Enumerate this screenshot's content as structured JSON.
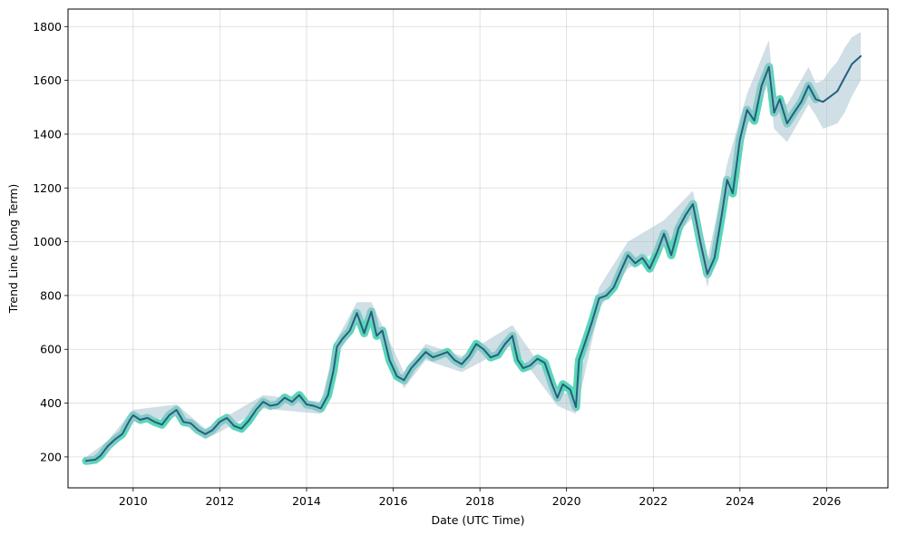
{
  "chart_data": {
    "type": "line",
    "title": "",
    "xlabel": "Date (UTC Time)",
    "ylabel": "Trend Line (Long Term)",
    "xlim": [
      "2008-07-01",
      "2027-06-01"
    ],
    "ylim": [
      85,
      1865
    ],
    "grid": true,
    "x_ticks": [
      "2010",
      "2012",
      "2014",
      "2016",
      "2018",
      "2020",
      "2022",
      "2024",
      "2026"
    ],
    "y_ticks": [
      200,
      400,
      600,
      800,
      1000,
      1200,
      1400,
      1600,
      1800
    ],
    "colors": {
      "history_band": "#48d1b0",
      "trend_line": "#24607f",
      "uncertainty_band": "#a9c3d2"
    },
    "series": [
      {
        "role": "history",
        "band_width": 18,
        "points": [
          [
            "2008-12-01",
            185
          ],
          [
            "2009-02-15",
            190
          ],
          [
            "2009-04-01",
            205
          ],
          [
            "2009-06-01",
            240
          ],
          [
            "2009-08-01",
            265
          ],
          [
            "2009-10-01",
            285
          ],
          [
            "2009-12-01",
            335
          ],
          [
            "2010-01-01",
            355
          ],
          [
            "2010-03-01",
            338
          ],
          [
            "2010-05-01",
            345
          ],
          [
            "2010-07-01",
            330
          ],
          [
            "2010-09-01",
            320
          ],
          [
            "2010-11-01",
            355
          ],
          [
            "2011-01-01",
            375
          ],
          [
            "2011-03-01",
            330
          ],
          [
            "2011-05-01",
            325
          ],
          [
            "2011-07-01",
            300
          ],
          [
            "2011-09-01",
            285
          ],
          [
            "2011-11-01",
            300
          ],
          [
            "2012-01-01",
            330
          ],
          [
            "2012-03-01",
            345
          ],
          [
            "2012-05-01",
            315
          ],
          [
            "2012-07-01",
            305
          ],
          [
            "2012-09-01",
            335
          ],
          [
            "2012-11-01",
            375
          ],
          [
            "2013-01-01",
            405
          ],
          [
            "2013-03-01",
            390
          ],
          [
            "2013-05-01",
            395
          ],
          [
            "2013-07-01",
            420
          ],
          [
            "2013-09-01",
            405
          ],
          [
            "2013-11-01",
            430
          ],
          [
            "2014-01-01",
            395
          ],
          [
            "2014-03-01",
            390
          ],
          [
            "2014-05-01",
            380
          ],
          [
            "2014-07-01",
            430
          ],
          [
            "2014-08-15",
            520
          ],
          [
            "2014-09-15",
            610
          ],
          [
            "2014-11-01",
            640
          ],
          [
            "2015-01-01",
            670
          ],
          [
            "2015-03-01",
            735
          ],
          [
            "2015-05-01",
            660
          ],
          [
            "2015-07-01",
            740
          ],
          [
            "2015-08-15",
            650
          ],
          [
            "2015-10-01",
            670
          ],
          [
            "2015-12-01",
            560
          ],
          [
            "2016-02-01",
            500
          ],
          [
            "2016-04-01",
            485
          ],
          [
            "2016-06-01",
            530
          ],
          [
            "2016-08-01",
            560
          ],
          [
            "2016-10-01",
            590
          ],
          [
            "2016-12-01",
            570
          ],
          [
            "2017-02-01",
            580
          ],
          [
            "2017-04-01",
            590
          ],
          [
            "2017-06-01",
            560
          ],
          [
            "2017-08-01",
            545
          ],
          [
            "2017-10-01",
            575
          ],
          [
            "2017-12-01",
            620
          ],
          [
            "2018-02-01",
            600
          ],
          [
            "2018-04-01",
            570
          ],
          [
            "2018-06-01",
            580
          ],
          [
            "2018-08-01",
            620
          ],
          [
            "2018-10-01",
            650
          ],
          [
            "2018-11-15",
            560
          ],
          [
            "2019-01-01",
            530
          ],
          [
            "2019-03-01",
            540
          ],
          [
            "2019-05-01",
            565
          ],
          [
            "2019-07-01",
            550
          ],
          [
            "2019-09-01",
            470
          ],
          [
            "2019-10-15",
            420
          ],
          [
            "2019-12-01",
            470
          ],
          [
            "2020-02-01",
            450
          ],
          [
            "2020-03-20",
            385
          ],
          [
            "2020-04-15",
            560
          ],
          [
            "2020-06-01",
            620
          ],
          [
            "2020-08-01",
            700
          ],
          [
            "2020-10-01",
            790
          ],
          [
            "2020-12-01",
            800
          ],
          [
            "2021-02-01",
            830
          ],
          [
            "2021-04-01",
            890
          ],
          [
            "2021-06-01",
            950
          ],
          [
            "2021-08-01",
            920
          ],
          [
            "2021-10-01",
            940
          ],
          [
            "2021-12-01",
            900
          ],
          [
            "2022-02-01",
            960
          ],
          [
            "2022-04-01",
            1030
          ],
          [
            "2022-06-01",
            950
          ],
          [
            "2022-08-01",
            1050
          ],
          [
            "2022-10-01",
            1100
          ],
          [
            "2022-12-01",
            1140
          ],
          [
            "2023-02-01",
            1000
          ],
          [
            "2023-04-01",
            880
          ],
          [
            "2023-06-01",
            940
          ],
          [
            "2023-08-01",
            1100
          ],
          [
            "2023-09-15",
            1230
          ],
          [
            "2023-11-01",
            1180
          ],
          [
            "2024-01-01",
            1380
          ],
          [
            "2024-03-01",
            1490
          ],
          [
            "2024-05-01",
            1450
          ],
          [
            "2024-07-01",
            1580
          ],
          [
            "2024-09-01",
            1650
          ],
          [
            "2024-10-15",
            1480
          ],
          [
            "2024-12-01",
            1530
          ],
          [
            "2025-02-01",
            1440
          ],
          [
            "2025-04-01",
            1480
          ],
          [
            "2025-06-01",
            1520
          ],
          [
            "2025-08-01",
            1580
          ],
          [
            "2025-10-01",
            1530
          ]
        ]
      },
      {
        "role": "trend",
        "points": [
          [
            "2008-12-01",
            185
          ],
          [
            "2009-02-15",
            190
          ],
          [
            "2009-04-01",
            205
          ],
          [
            "2009-06-01",
            240
          ],
          [
            "2009-08-01",
            265
          ],
          [
            "2009-10-01",
            285
          ],
          [
            "2009-12-01",
            335
          ],
          [
            "2010-01-01",
            355
          ],
          [
            "2010-03-01",
            338
          ],
          [
            "2010-05-01",
            345
          ],
          [
            "2010-07-01",
            330
          ],
          [
            "2010-09-01",
            320
          ],
          [
            "2010-11-01",
            355
          ],
          [
            "2011-01-01",
            375
          ],
          [
            "2011-03-01",
            330
          ],
          [
            "2011-05-01",
            325
          ],
          [
            "2011-07-01",
            300
          ],
          [
            "2011-09-01",
            285
          ],
          [
            "2011-11-01",
            300
          ],
          [
            "2012-01-01",
            330
          ],
          [
            "2012-03-01",
            345
          ],
          [
            "2012-05-01",
            315
          ],
          [
            "2012-07-01",
            305
          ],
          [
            "2012-09-01",
            335
          ],
          [
            "2012-11-01",
            375
          ],
          [
            "2013-01-01",
            405
          ],
          [
            "2013-03-01",
            390
          ],
          [
            "2013-05-01",
            395
          ],
          [
            "2013-07-01",
            420
          ],
          [
            "2013-09-01",
            405
          ],
          [
            "2013-11-01",
            430
          ],
          [
            "2014-01-01",
            395
          ],
          [
            "2014-03-01",
            390
          ],
          [
            "2014-05-01",
            380
          ],
          [
            "2014-07-01",
            430
          ],
          [
            "2014-08-15",
            520
          ],
          [
            "2014-09-15",
            610
          ],
          [
            "2014-11-01",
            640
          ],
          [
            "2015-01-01",
            670
          ],
          [
            "2015-03-01",
            735
          ],
          [
            "2015-05-01",
            660
          ],
          [
            "2015-07-01",
            740
          ],
          [
            "2015-08-15",
            650
          ],
          [
            "2015-10-01",
            670
          ],
          [
            "2015-12-01",
            560
          ],
          [
            "2016-02-01",
            500
          ],
          [
            "2016-04-01",
            485
          ],
          [
            "2016-06-01",
            530
          ],
          [
            "2016-08-01",
            560
          ],
          [
            "2016-10-01",
            590
          ],
          [
            "2016-12-01",
            570
          ],
          [
            "2017-02-01",
            580
          ],
          [
            "2017-04-01",
            590
          ],
          [
            "2017-06-01",
            560
          ],
          [
            "2017-08-01",
            545
          ],
          [
            "2017-10-01",
            575
          ],
          [
            "2017-12-01",
            620
          ],
          [
            "2018-02-01",
            600
          ],
          [
            "2018-04-01",
            570
          ],
          [
            "2018-06-01",
            580
          ],
          [
            "2018-08-01",
            620
          ],
          [
            "2018-10-01",
            650
          ],
          [
            "2018-11-15",
            560
          ],
          [
            "2019-01-01",
            530
          ],
          [
            "2019-03-01",
            540
          ],
          [
            "2019-05-01",
            565
          ],
          [
            "2019-07-01",
            550
          ],
          [
            "2019-09-01",
            470
          ],
          [
            "2019-10-15",
            420
          ],
          [
            "2019-12-01",
            470
          ],
          [
            "2020-02-01",
            450
          ],
          [
            "2020-03-20",
            385
          ],
          [
            "2020-04-15",
            560
          ],
          [
            "2020-06-01",
            620
          ],
          [
            "2020-08-01",
            700
          ],
          [
            "2020-10-01",
            790
          ],
          [
            "2020-12-01",
            800
          ],
          [
            "2021-02-01",
            830
          ],
          [
            "2021-04-01",
            890
          ],
          [
            "2021-06-01",
            950
          ],
          [
            "2021-08-01",
            920
          ],
          [
            "2021-10-01",
            940
          ],
          [
            "2021-12-01",
            900
          ],
          [
            "2022-02-01",
            960
          ],
          [
            "2022-04-01",
            1030
          ],
          [
            "2022-06-01",
            950
          ],
          [
            "2022-08-01",
            1050
          ],
          [
            "2022-10-01",
            1100
          ],
          [
            "2022-12-01",
            1140
          ],
          [
            "2023-02-01",
            1000
          ],
          [
            "2023-04-01",
            880
          ],
          [
            "2023-06-01",
            940
          ],
          [
            "2023-08-01",
            1100
          ],
          [
            "2023-09-15",
            1230
          ],
          [
            "2023-11-01",
            1180
          ],
          [
            "2024-01-01",
            1380
          ],
          [
            "2024-03-01",
            1490
          ],
          [
            "2024-05-01",
            1450
          ],
          [
            "2024-07-01",
            1580
          ],
          [
            "2024-09-01",
            1650
          ],
          [
            "2024-10-15",
            1480
          ],
          [
            "2024-12-01",
            1530
          ],
          [
            "2025-02-01",
            1440
          ],
          [
            "2025-04-01",
            1480
          ],
          [
            "2025-06-01",
            1520
          ],
          [
            "2025-08-01",
            1580
          ],
          [
            "2025-10-01",
            1530
          ],
          [
            "2025-12-01",
            1520
          ],
          [
            "2026-02-01",
            1540
          ],
          [
            "2026-04-01",
            1560
          ],
          [
            "2026-06-01",
            1610
          ],
          [
            "2026-08-01",
            1660
          ],
          [
            "2026-10-15",
            1690
          ]
        ]
      },
      {
        "role": "uncertainty",
        "points": [
          [
            "2008-12-01",
            170,
            200
          ],
          [
            "2009-06-01",
            220,
            260
          ],
          [
            "2010-01-01",
            330,
            375
          ],
          [
            "2011-01-01",
            350,
            395
          ],
          [
            "2011-09-01",
            265,
            305
          ],
          [
            "2013-01-01",
            380,
            430
          ],
          [
            "2014-05-01",
            360,
            405
          ],
          [
            "2014-09-15",
            580,
            640
          ],
          [
            "2015-03-01",
            700,
            775
          ],
          [
            "2015-07-01",
            710,
            775
          ],
          [
            "2016-04-01",
            455,
            515
          ],
          [
            "2016-10-01",
            560,
            620
          ],
          [
            "2017-08-01",
            515,
            575
          ],
          [
            "2018-10-01",
            615,
            690
          ],
          [
            "2019-10-15",
            390,
            450
          ],
          [
            "2020-03-20",
            360,
            420
          ],
          [
            "2020-10-01",
            750,
            830
          ],
          [
            "2021-06-01",
            900,
            1000
          ],
          [
            "2022-04-01",
            980,
            1080
          ],
          [
            "2022-12-01",
            1090,
            1190
          ],
          [
            "2023-04-01",
            830,
            930
          ],
          [
            "2023-09-15",
            1170,
            1290
          ],
          [
            "2024-03-01",
            1430,
            1550
          ],
          [
            "2024-09-01",
            1590,
            1750
          ],
          [
            "2024-10-15",
            1420,
            1540
          ],
          [
            "2025-02-01",
            1370,
            1510
          ],
          [
            "2025-08-01",
            1510,
            1650
          ],
          [
            "2025-10-01",
            1470,
            1590
          ],
          [
            "2025-12-01",
            1420,
            1600
          ],
          [
            "2026-02-01",
            1430,
            1640
          ],
          [
            "2026-04-01",
            1440,
            1670
          ],
          [
            "2026-06-01",
            1480,
            1720
          ],
          [
            "2026-08-01",
            1540,
            1760
          ],
          [
            "2026-10-15",
            1600,
            1780
          ]
        ]
      }
    ]
  }
}
